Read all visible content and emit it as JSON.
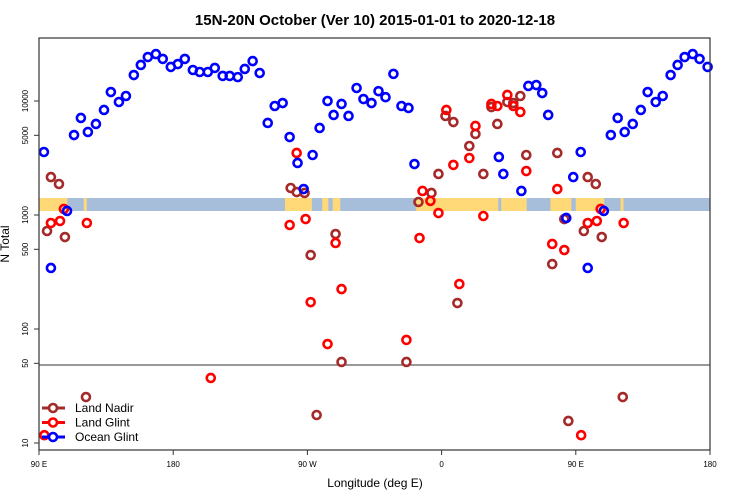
{
  "chart_data": {
    "type": "scatter",
    "title": "15N-20N October (Ver 10)   2015-01-01 to 2020-12-18",
    "xlabel": "Longitude (deg E)",
    "ylabel": "N Total",
    "yscale": "log",
    "ylim": [
      7.7,
      35000
    ],
    "xlim_lon_east_unwrapped": [
      90,
      540
    ],
    "x_ticks": [
      {
        "value": 90,
        "label": "90 E"
      },
      {
        "value": 180,
        "label": "180"
      },
      {
        "value": 270,
        "label": "90 W"
      },
      {
        "value": 360,
        "label": "0"
      },
      {
        "value": 450,
        "label": "90 E"
      },
      {
        "value": 540,
        "label": "180"
      }
    ],
    "y_ticks": [
      {
        "value": 10,
        "label": "10"
      },
      {
        "value": 50,
        "label": "50"
      },
      {
        "value": 100,
        "label": "100"
      },
      {
        "value": 500,
        "label": "500"
      },
      {
        "value": 1000,
        "label": "1000"
      },
      {
        "value": 5000,
        "label": "5000"
      },
      {
        "value": 10000,
        "label": "10000"
      }
    ],
    "reference_line_y": 50,
    "legend_position": "bottom-left",
    "map_band": {
      "ocean_color": "#a7bedb",
      "land_color": "#ffd978",
      "land_lon_ranges": [
        [
          90,
          108
        ],
        [
          120,
          122
        ],
        [
          -105,
          -87
        ],
        [
          -80,
          -76
        ],
        [
          -73,
          -68
        ],
        [
          -17,
          38
        ],
        [
          40,
          57
        ],
        [
          73,
          87
        ],
        [
          94,
          109
        ]
      ]
    },
    "series": [
      {
        "name": "Land Nadir",
        "color": "#a52a2a",
        "points": [
          [
            98,
            2150
          ],
          [
            103.4,
            1870
          ],
          [
            95.4,
            724
          ],
          [
            107.4,
            641
          ],
          [
            121.5,
            25.3
          ],
          [
            -101.2,
            1725
          ],
          [
            -97.2,
            1590
          ],
          [
            -91.9,
            1560
          ],
          [
            -87.8,
            445
          ],
          [
            -83.8,
            17.6
          ],
          [
            -71.1,
            681
          ],
          [
            -67.1,
            51.4
          ],
          [
            -23.6,
            51.4
          ],
          [
            -15.5,
            1300
          ],
          [
            -6.8,
            1560
          ],
          [
            -2.1,
            2290
          ],
          [
            2.6,
            7390
          ],
          [
            7.9,
            6540
          ],
          [
            10.6,
            169
          ],
          [
            18.6,
            4030
          ],
          [
            22.7,
            5140
          ],
          [
            28,
            2290
          ],
          [
            33.4,
            8850
          ],
          [
            37.4,
            6290
          ],
          [
            44.1,
            9800
          ],
          [
            48.1,
            9600
          ],
          [
            52.8,
            11060
          ],
          [
            56.8,
            3360
          ],
          [
            74.2,
            371
          ],
          [
            77.6,
            3500
          ],
          [
            82.3,
            922
          ],
          [
            85,
            15.6
          ]
        ]
      },
      {
        "name": "Land Glint",
        "color": "#ff0000",
        "points": [
          [
            98,
            851
          ],
          [
            104.1,
            886
          ],
          [
            106.7,
            1130
          ],
          [
            122.1,
            851
          ],
          [
            93.6,
            11.7
          ],
          [
            -154.8,
            37.2
          ],
          [
            -101.9,
            817
          ],
          [
            -97.2,
            3500
          ],
          [
            -91.2,
            922
          ],
          [
            -87.8,
            172
          ],
          [
            -76.5,
            73.8
          ],
          [
            -71.1,
            568
          ],
          [
            -67.1,
            224
          ],
          [
            -23.6,
            80.2
          ],
          [
            -14.8,
            628
          ],
          [
            -12.8,
            1625
          ],
          [
            -7.5,
            1330
          ],
          [
            -2.1,
            1040
          ],
          [
            3.2,
            8340
          ],
          [
            7.9,
            2750
          ],
          [
            11.9,
            248
          ],
          [
            18.6,
            3160
          ],
          [
            22.7,
            6040
          ],
          [
            28,
            980
          ],
          [
            33.4,
            9420
          ],
          [
            37.4,
            9040
          ],
          [
            44.1,
            11300
          ],
          [
            48.1,
            9040
          ],
          [
            52.8,
            8010
          ],
          [
            56.8,
            2430
          ],
          [
            74.2,
            557
          ],
          [
            77.6,
            1690
          ],
          [
            82.3,
            493
          ]
        ]
      },
      {
        "name": "Ocean Glint",
        "color": "#0000ff",
        "points": [
          [
            93.3,
            3570
          ],
          [
            98,
            343
          ],
          [
            108.8,
            1085
          ],
          [
            113.5,
            5030
          ],
          [
            118.1,
            7100
          ],
          [
            122.8,
            5350
          ],
          [
            128.2,
            6290
          ],
          [
            133.6,
            8340
          ],
          [
            138.2,
            11990
          ],
          [
            143.6,
            9800
          ],
          [
            148.3,
            11060
          ],
          [
            153.6,
            16900
          ],
          [
            158.3,
            20700
          ],
          [
            163,
            24300
          ],
          [
            168.4,
            25800
          ],
          [
            173,
            23400
          ],
          [
            178.4,
            19900
          ],
          [
            -176.9,
            21100
          ],
          [
            -172.2,
            23400
          ],
          [
            -166.8,
            18700
          ],
          [
            -162.2,
            17960
          ],
          [
            -156.8,
            17960
          ],
          [
            -152.1,
            19500
          ],
          [
            -146.8,
            16600
          ],
          [
            -142.1,
            16600
          ],
          [
            -136.7,
            16200
          ],
          [
            -132,
            19100
          ],
          [
            -126.7,
            22400
          ],
          [
            -122,
            17600
          ],
          [
            -116.6,
            6420
          ],
          [
            -111.9,
            9040
          ],
          [
            -106.6,
            9600
          ],
          [
            -101.9,
            4830
          ],
          [
            -96.6,
            2860
          ],
          [
            -92.5,
            1690
          ],
          [
            -86.5,
            3360
          ],
          [
            -81.8,
            5800
          ],
          [
            -76.5,
            10000
          ],
          [
            -72.4,
            7540
          ],
          [
            -67.1,
            9420
          ],
          [
            -62.4,
            7390
          ],
          [
            -57,
            13000
          ],
          [
            -52.4,
            10400
          ],
          [
            -47,
            9600
          ],
          [
            -42.3,
            12200
          ],
          [
            -37.6,
            10800
          ],
          [
            -32.3,
            17300
          ],
          [
            -26.9,
            9040
          ],
          [
            -22.2,
            8690
          ],
          [
            -18.2,
            2800
          ],
          [
            38.4,
            3230
          ],
          [
            41.4,
            2290
          ],
          [
            53.5,
            1625
          ],
          [
            58.2,
            13550
          ],
          [
            63.5,
            13800
          ],
          [
            67.5,
            11750
          ],
          [
            71.5,
            7540
          ],
          [
            83.6,
            942
          ],
          [
            88.3,
            2150
          ]
        ]
      }
    ]
  }
}
